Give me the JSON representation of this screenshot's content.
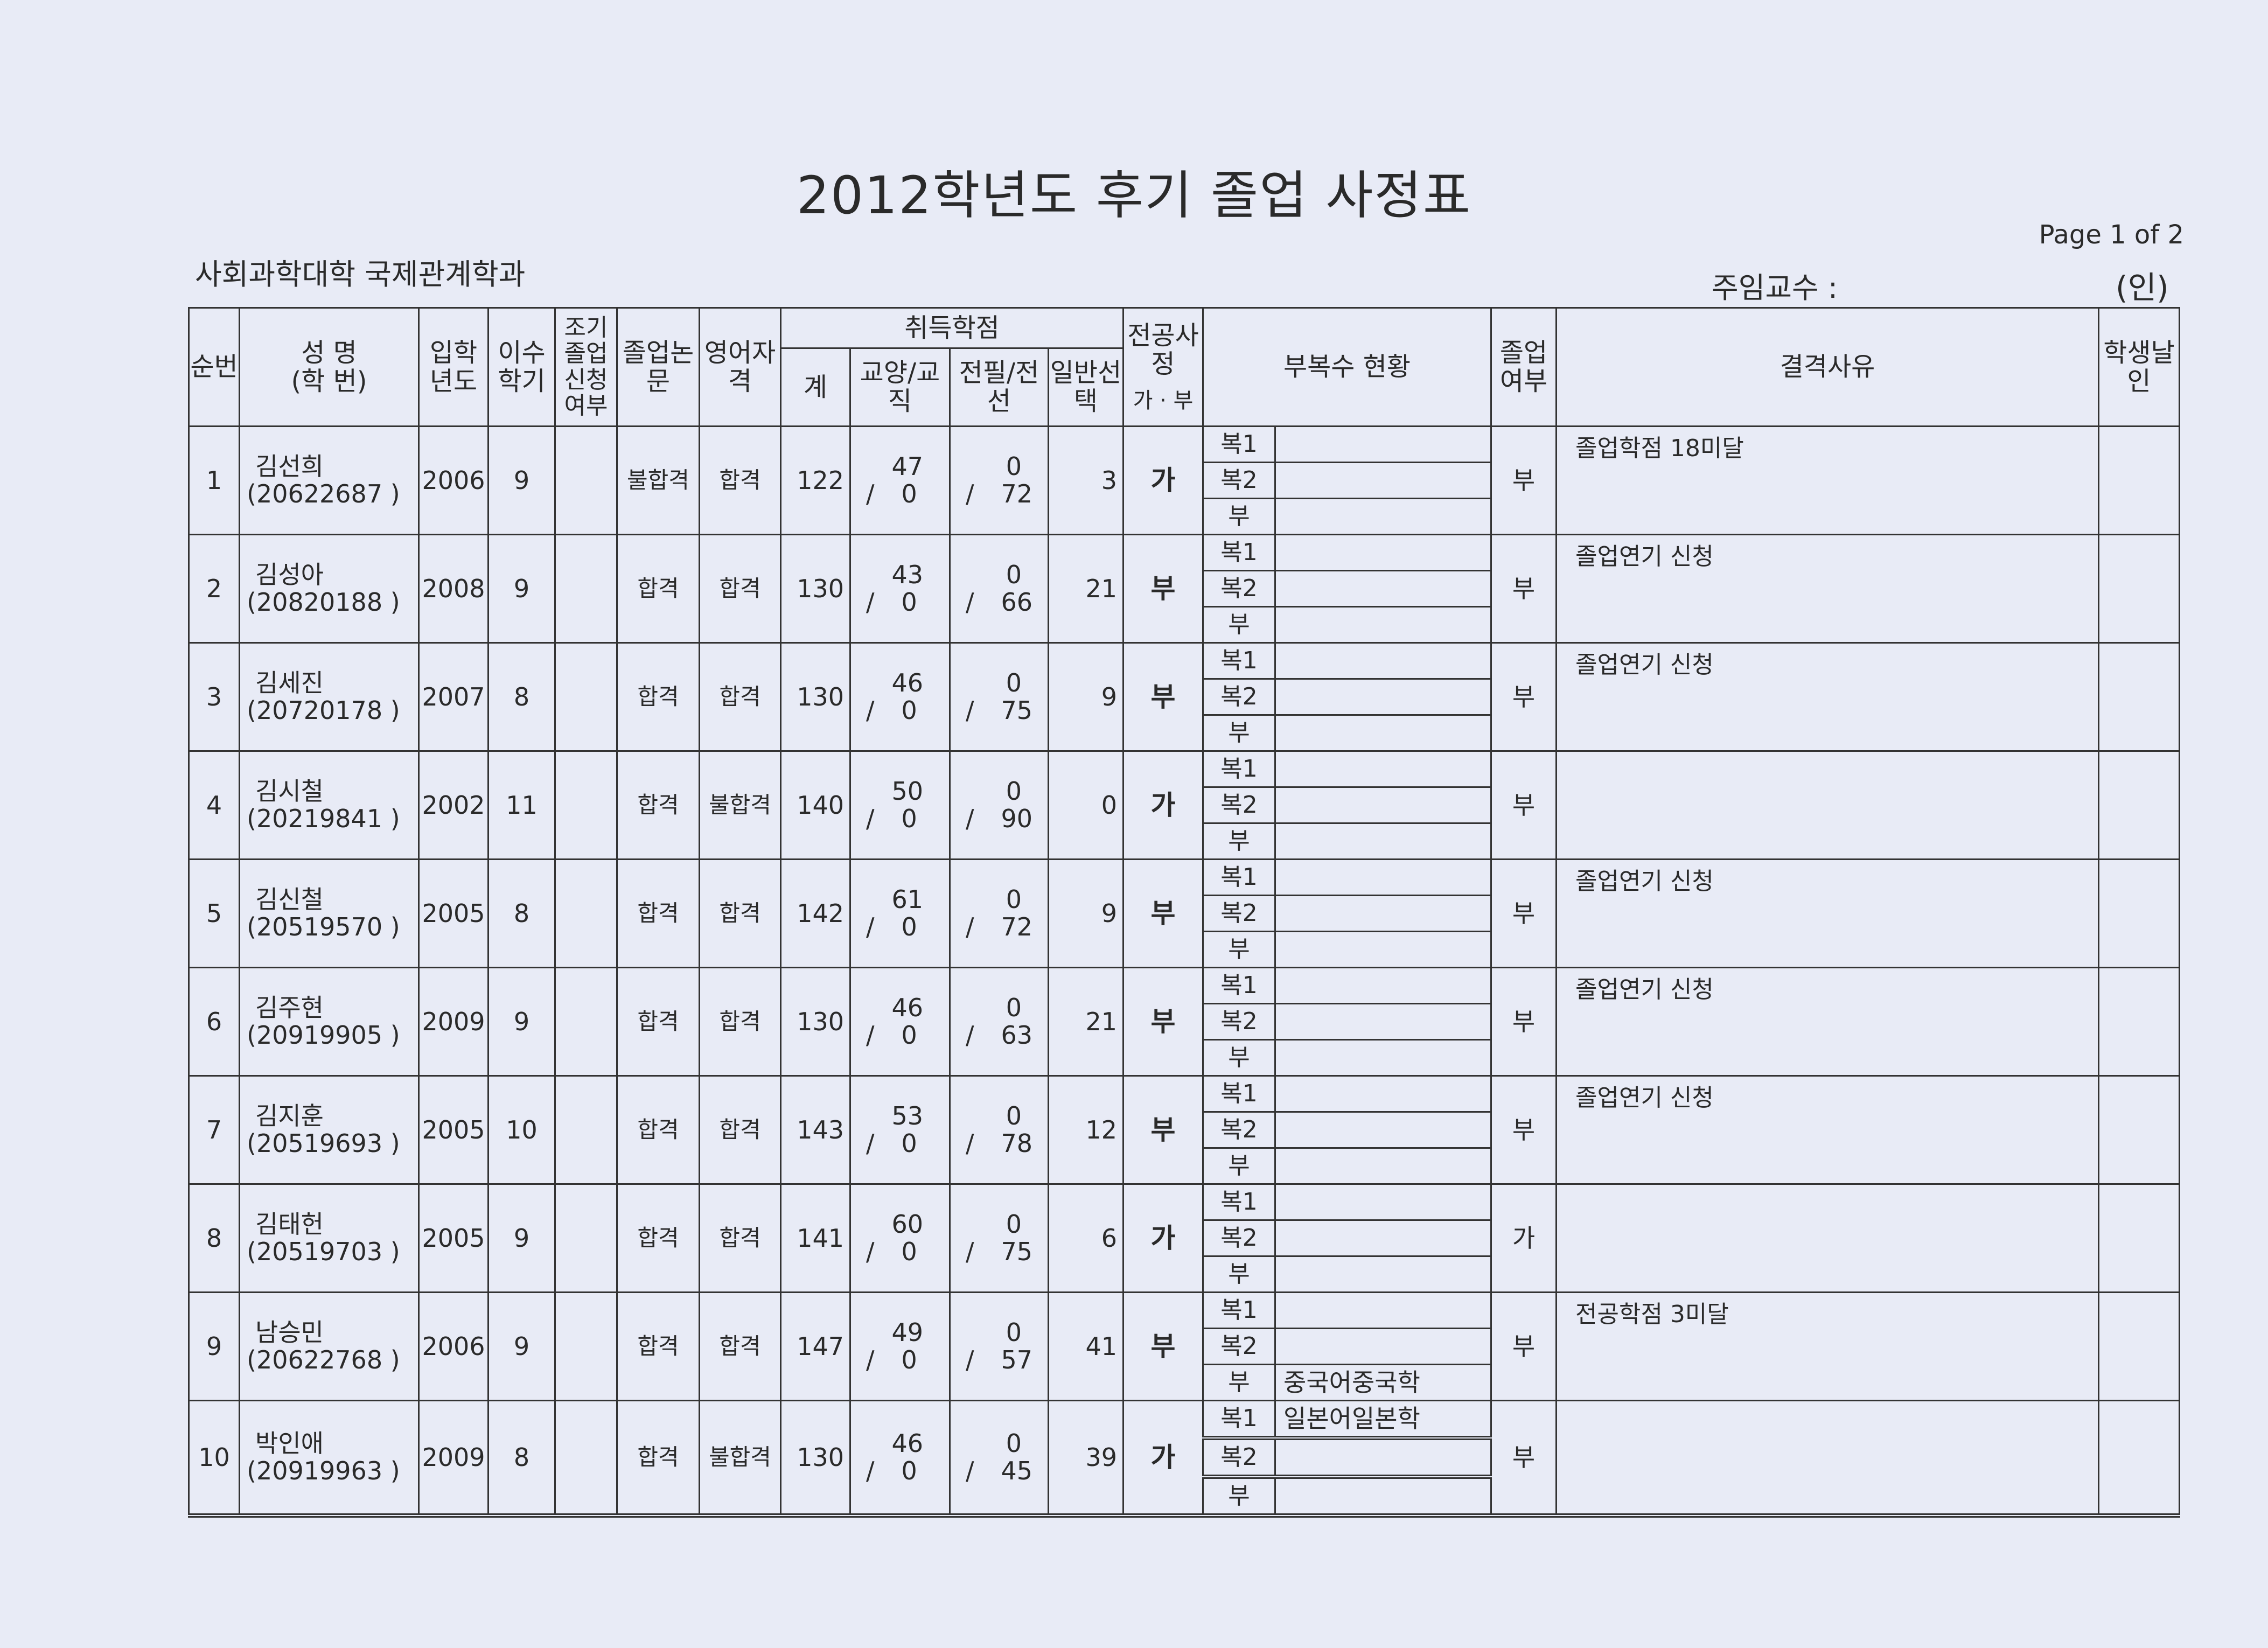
{
  "title": "2012학년도 후기  졸업 사정표",
  "page_label": "Page 1 of 2",
  "department": "사회과학대학   국제관계학과",
  "professor_label": "주임교수 :",
  "seal_label": "(인)",
  "headers": {
    "no": "순번",
    "name": "성  명",
    "student_id": "(학  번)",
    "entry_year": "입학년도",
    "semesters": "이수학기",
    "early_grad": "조기졸업신청여부",
    "thesis": "졸업논문",
    "english": "영어자격",
    "credits": "취득학점",
    "total": "계",
    "liberal": "교양/교직",
    "major": "전필/전선",
    "general": "일반선택",
    "major_eval": "전공사정",
    "major_eval_sub": "가 · 부",
    "minor": "부복수 현황",
    "grad": "졸업여부",
    "reason": "결격사유",
    "seal": "학생날인"
  },
  "minor_labels": [
    "복1",
    "복2",
    "부"
  ],
  "rows": [
    {
      "no": "1",
      "name": "김선희",
      "id": "(20622687   )",
      "year": "2006",
      "sem": "9",
      "early": "",
      "thesis": "불합격",
      "english": "합격",
      "total": "122",
      "lib_top": "47",
      "lib_bot": "0",
      "maj_top": "0",
      "maj_bot": "72",
      "general": "3",
      "major_eval": "가",
      "minor": [
        "",
        "",
        ""
      ],
      "grad": "부",
      "reason": "졸업학점 18미달"
    },
    {
      "no": "2",
      "name": "김성아",
      "id": "(20820188   )",
      "year": "2008",
      "sem": "9",
      "early": "",
      "thesis": "합격",
      "english": "합격",
      "total": "130",
      "lib_top": "43",
      "lib_bot": "0",
      "maj_top": "0",
      "maj_bot": "66",
      "general": "21",
      "major_eval": "부",
      "minor": [
        "",
        "",
        ""
      ],
      "grad": "부",
      "reason": "졸업연기 신청"
    },
    {
      "no": "3",
      "name": "김세진",
      "id": "(20720178   )",
      "year": "2007",
      "sem": "8",
      "early": "",
      "thesis": "합격",
      "english": "합격",
      "total": "130",
      "lib_top": "46",
      "lib_bot": "0",
      "maj_top": "0",
      "maj_bot": "75",
      "general": "9",
      "major_eval": "부",
      "minor": [
        "",
        "",
        ""
      ],
      "grad": "부",
      "reason": "졸업연기 신청"
    },
    {
      "no": "4",
      "name": "김시철",
      "id": "(20219841   )",
      "year": "2002",
      "sem": "11",
      "early": "",
      "thesis": "합격",
      "english": "불합격",
      "total": "140",
      "lib_top": "50",
      "lib_bot": "0",
      "maj_top": "0",
      "maj_bot": "90",
      "general": "0",
      "major_eval": "가",
      "minor": [
        "",
        "",
        ""
      ],
      "grad": "부",
      "reason": ""
    },
    {
      "no": "5",
      "name": "김신철",
      "id": "(20519570   )",
      "year": "2005",
      "sem": "8",
      "early": "",
      "thesis": "합격",
      "english": "합격",
      "total": "142",
      "lib_top": "61",
      "lib_bot": "0",
      "maj_top": "0",
      "maj_bot": "72",
      "general": "9",
      "major_eval": "부",
      "minor": [
        "",
        "",
        ""
      ],
      "grad": "부",
      "reason": "졸업연기 신청"
    },
    {
      "no": "6",
      "name": "김주현",
      "id": "(20919905   )",
      "year": "2009",
      "sem": "9",
      "early": "",
      "thesis": "합격",
      "english": "합격",
      "total": "130",
      "lib_top": "46",
      "lib_bot": "0",
      "maj_top": "0",
      "maj_bot": "63",
      "general": "21",
      "major_eval": "부",
      "minor": [
        "",
        "",
        ""
      ],
      "grad": "부",
      "reason": "졸업연기 신청"
    },
    {
      "no": "7",
      "name": "김지훈",
      "id": "(20519693   )",
      "year": "2005",
      "sem": "10",
      "early": "",
      "thesis": "합격",
      "english": "합격",
      "total": "143",
      "lib_top": "53",
      "lib_bot": "0",
      "maj_top": "0",
      "maj_bot": "78",
      "general": "12",
      "major_eval": "부",
      "minor": [
        "",
        "",
        ""
      ],
      "grad": "부",
      "reason": "졸업연기 신청"
    },
    {
      "no": "8",
      "name": "김태헌",
      "id": "(20519703   )",
      "year": "2005",
      "sem": "9",
      "early": "",
      "thesis": "합격",
      "english": "합격",
      "total": "141",
      "lib_top": "60",
      "lib_bot": "0",
      "maj_top": "0",
      "maj_bot": "75",
      "general": "6",
      "major_eval": "가",
      "minor": [
        "",
        "",
        ""
      ],
      "grad": "가",
      "reason": ""
    },
    {
      "no": "9",
      "name": "남승민",
      "id": "(20622768   )",
      "year": "2006",
      "sem": "9",
      "early": "",
      "thesis": "합격",
      "english": "합격",
      "total": "147",
      "lib_top": "49",
      "lib_bot": "0",
      "maj_top": "0",
      "maj_bot": "57",
      "general": "41",
      "major_eval": "부",
      "minor": [
        "",
        "",
        "중국어중국학"
      ],
      "grad": "부",
      "reason": "전공학점 3미달"
    },
    {
      "no": "10",
      "name": "박인애",
      "id": "(20919963   )",
      "year": "2009",
      "sem": "8",
      "early": "",
      "thesis": "합격",
      "english": "불합격",
      "total": "130",
      "lib_top": "46",
      "lib_bot": "0",
      "maj_top": "0",
      "maj_bot": "45",
      "general": "39",
      "major_eval": "가",
      "minor": [
        "일본어일본학",
        "",
        ""
      ],
      "grad": "부",
      "reason": ""
    }
  ]
}
